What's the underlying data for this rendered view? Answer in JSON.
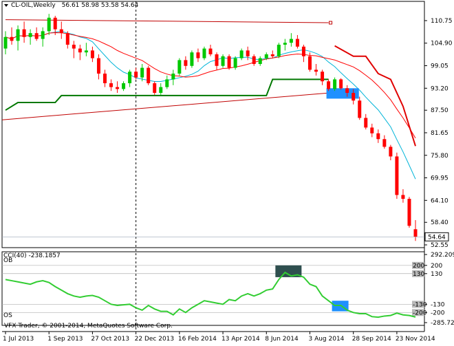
{
  "header": {
    "symbol": "CL-OIL,Weekly",
    "ohlc": "56.61 58.98 53.58 54.64"
  },
  "footer": {
    "copyright": "VFX Trader, © 2001-2014, MetaQuotes Software Corp."
  },
  "indicator": {
    "title": "CCI(40) -238.1857",
    "ob_label": "OB",
    "os_label": "OS"
  },
  "colors": {
    "bull": "#00c800",
    "bear": "#ff0000",
    "ma_fast": "#00b4d8",
    "ma_slow": "#ff0000",
    "ma_long": "#c00000",
    "stop_up": "#007800",
    "stop_down": "#e00000",
    "cci_line": "#32cd32",
    "ob_zone": "#2f4f4f",
    "os_zone": "#1e90ff",
    "price_zone": "#1e90ff",
    "last_price_bg": "#000000"
  },
  "chart_data": [
    {
      "type": "candlestick",
      "yticks": [
        "110.75",
        "104.90",
        "99.05",
        "93.20",
        "87.50",
        "81.65",
        "75.80",
        "69.95",
        "64.10",
        "58.40",
        "52.55"
      ],
      "last_price": "54.64",
      "ylim": [
        52.55,
        113.6
      ],
      "xticks": [
        "1 Jul 2013",
        "1 Sep 2013",
        "27 Oct 2013",
        "22 Dec 2013",
        "16 Feb 2014",
        "13 Apr 2014",
        "8 Jun 2014",
        "3 Aug 2014",
        "28 Sep 2014",
        "23 Nov 2014"
      ],
      "candles": [
        [
          103.5,
          108.0,
          102.0,
          106.5
        ],
        [
          106.5,
          109.0,
          104.5,
          105.5
        ],
        [
          105.5,
          109.5,
          103.0,
          108.5
        ],
        [
          108.5,
          110.5,
          105.0,
          106.5
        ],
        [
          106.5,
          108.5,
          104.5,
          107.5
        ],
        [
          107.5,
          109.0,
          105.5,
          106.0
        ],
        [
          106.0,
          109.0,
          104.0,
          108.0
        ],
        [
          108.0,
          112.5,
          107.0,
          111.5
        ],
        [
          111.5,
          112.0,
          107.0,
          108.5
        ],
        [
          108.5,
          110.5,
          106.0,
          107.5
        ],
        [
          107.5,
          108.0,
          103.5,
          104.5
        ],
        [
          104.5,
          105.5,
          101.0,
          103.5
        ],
        [
          103.5,
          104.5,
          100.5,
          102.5
        ],
        [
          102.5,
          105.0,
          101.5,
          103.0
        ],
        [
          103.0,
          104.0,
          100.0,
          101.0
        ],
        [
          101.0,
          102.0,
          95.5,
          97.0
        ],
        [
          97.0,
          98.0,
          93.5,
          94.5
        ],
        [
          94.5,
          95.5,
          92.5,
          93.5
        ],
        [
          93.5,
          95.0,
          92.0,
          93.0
        ],
        [
          93.0,
          95.0,
          92.5,
          94.5
        ],
        [
          94.5,
          98.0,
          93.5,
          97.5
        ],
        [
          97.5,
          98.5,
          95.5,
          96.0
        ],
        [
          96.0,
          99.5,
          95.0,
          98.5
        ],
        [
          98.5,
          99.0,
          94.0,
          94.5
        ],
        [
          94.5,
          95.0,
          91.5,
          92.0
        ],
        [
          92.0,
          94.5,
          91.5,
          93.5
        ],
        [
          93.5,
          96.5,
          93.0,
          95.5
        ],
        [
          95.5,
          98.0,
          94.0,
          97.0
        ],
        [
          97.0,
          101.0,
          96.5,
          100.5
        ],
        [
          100.5,
          101.5,
          98.0,
          99.0
        ],
        [
          99.0,
          103.0,
          98.5,
          102.5
        ],
        [
          102.5,
          103.5,
          100.0,
          101.0
        ],
        [
          101.0,
          104.0,
          100.5,
          103.5
        ],
        [
          103.5,
          104.5,
          101.5,
          102.0
        ],
        [
          102.0,
          102.5,
          98.0,
          99.0
        ],
        [
          99.0,
          102.0,
          98.5,
          101.5
        ],
        [
          101.5,
          102.0,
          98.0,
          98.5
        ],
        [
          98.5,
          101.5,
          98.0,
          101.0
        ],
        [
          101.0,
          103.5,
          100.5,
          103.0
        ],
        [
          103.0,
          104.0,
          100.5,
          101.5
        ],
        [
          101.5,
          102.0,
          99.0,
          99.5
        ],
        [
          99.5,
          101.5,
          99.0,
          101.0
        ],
        [
          101.0,
          102.5,
          100.5,
          102.0
        ],
        [
          102.0,
          103.0,
          101.0,
          101.5
        ],
        [
          101.5,
          105.0,
          101.0,
          104.5
        ],
        [
          104.5,
          106.0,
          103.0,
          105.0
        ],
        [
          105.0,
          107.5,
          104.0,
          106.0
        ],
        [
          106.0,
          107.0,
          103.5,
          104.0
        ],
        [
          104.0,
          104.5,
          100.0,
          101.5
        ],
        [
          101.5,
          102.5,
          97.5,
          98.0
        ],
        [
          98.0,
          99.5,
          96.5,
          97.5
        ],
        [
          97.5,
          98.0,
          94.0,
          95.0
        ],
        [
          95.0,
          95.5,
          92.5,
          93.0
        ],
        [
          93.0,
          96.0,
          92.5,
          95.5
        ],
        [
          95.5,
          95.8,
          92.8,
          93.2
        ],
        [
          93.2,
          94.0,
          91.0,
          92.0
        ],
        [
          92.0,
          93.0,
          89.0,
          90.0
        ],
        [
          90.0,
          91.0,
          85.0,
          85.5
        ],
        [
          85.5,
          86.5,
          82.5,
          83.0
        ],
        [
          83.0,
          84.0,
          80.5,
          81.5
        ],
        [
          81.5,
          82.5,
          79.0,
          80.0
        ],
        [
          80.0,
          81.0,
          77.5,
          78.0
        ],
        [
          78.0,
          78.5,
          74.5,
          75.5
        ],
        [
          75.5,
          76.5,
          64.5,
          65.5
        ],
        [
          65.5,
          67.0,
          63.5,
          64.5
        ],
        [
          64.5,
          65.0,
          57.0,
          57.5
        ],
        [
          56.61,
          58.98,
          53.58,
          54.64
        ]
      ]
    },
    {
      "type": "line",
      "name": "CCI(40)",
      "yticks": [
        "292.2093",
        "200",
        "130",
        "-130",
        "-200",
        "-285.7228"
      ],
      "ylim": [
        -285.7228,
        292.2093
      ],
      "ob_level": 200,
      "os_level": -200,
      "values": [
        80,
        70,
        60,
        50,
        40,
        60,
        70,
        55,
        20,
        -10,
        -40,
        -60,
        -70,
        -60,
        -55,
        -70,
        -100,
        -130,
        -140,
        -135,
        -130,
        -160,
        -180,
        -140,
        -170,
        -190,
        -190,
        -220,
        -170,
        -200,
        -160,
        -130,
        -100,
        -110,
        -120,
        -130,
        -90,
        -100,
        -60,
        -40,
        -60,
        -40,
        -10,
        0,
        80,
        140,
        110,
        120,
        100,
        40,
        20,
        -60,
        -100,
        -140,
        -140,
        -180,
        -200,
        -210,
        -210,
        -235,
        -240,
        -230,
        -225,
        -205,
        -220,
        -225,
        -238.19
      ]
    }
  ]
}
